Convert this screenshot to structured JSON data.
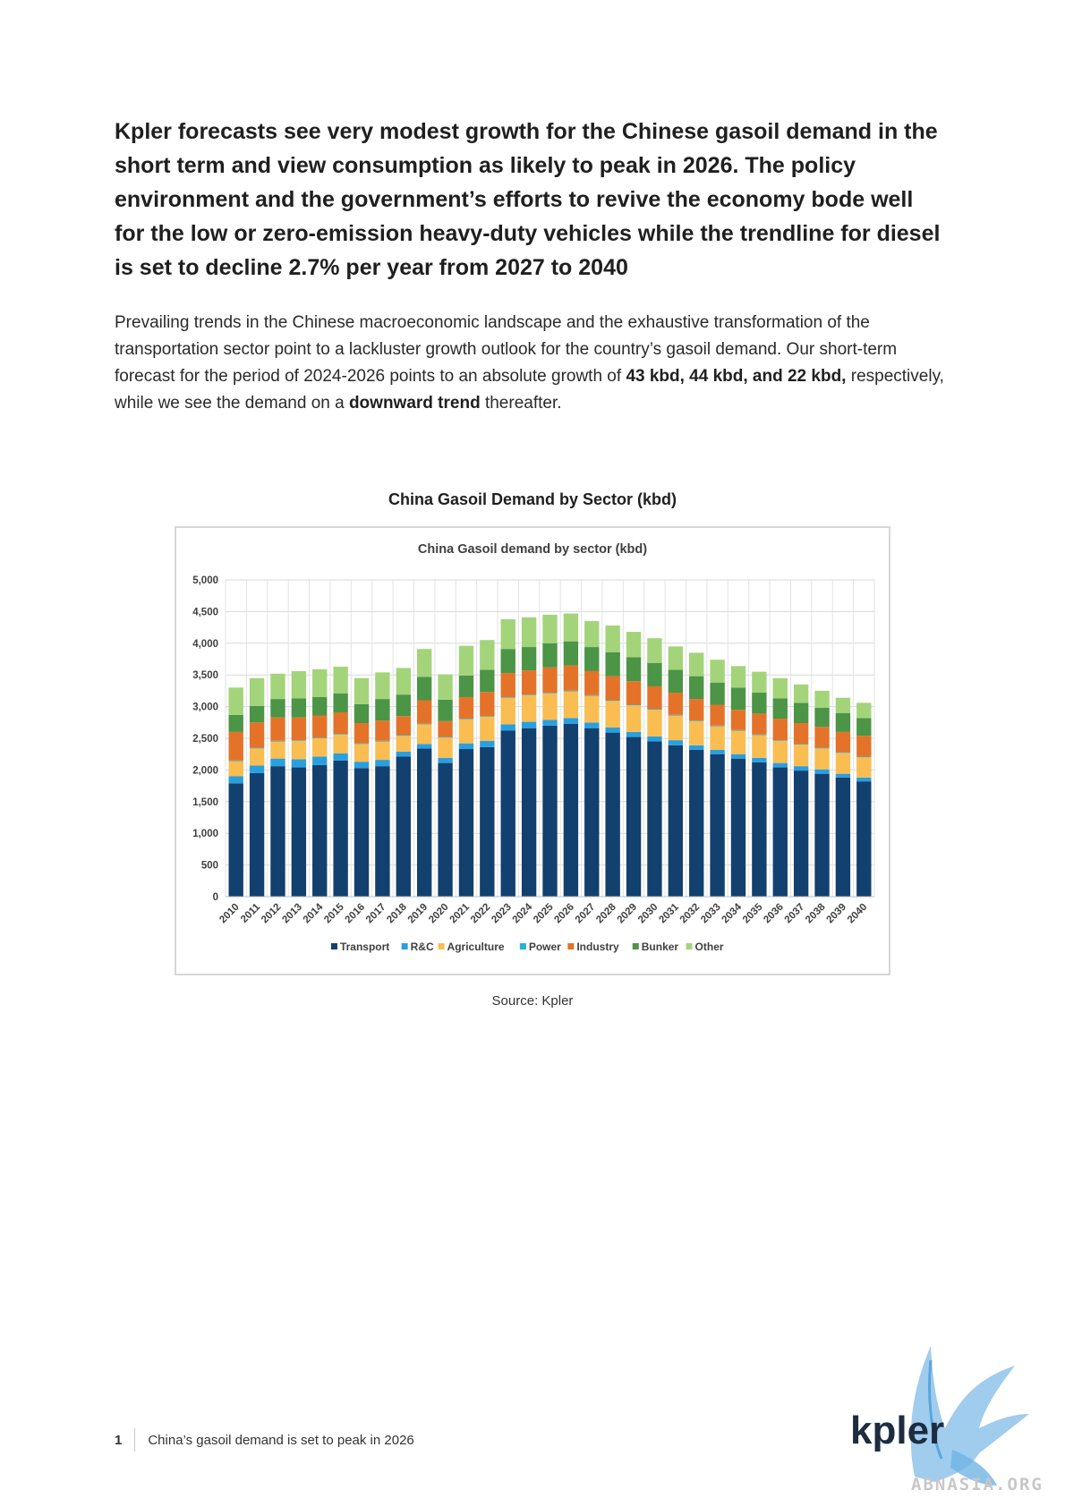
{
  "heading": "Kpler forecasts see very modest growth for the Chinese gasoil demand in the short term and view consumption as likely to peak in 2026. The policy environment and the government’s efforts to revive the economy bode well for the low or zero-emission heavy-duty vehicles while the trendline for diesel is set to decline 2.7% per year from 2027 to 2040",
  "paragraph": {
    "p1": "Prevailing trends in the Chinese macroeconomic landscape and the exhaustive transformation of the transportation sector point to a lackluster growth outlook for the country’s gasoil demand. Our short-term forecast for the period of 2024-2026 points to an absolute growth of ",
    "b1": "43 kbd, 44 kbd, and 22 kbd,",
    "p2": " respectively, while we see the demand on a ",
    "b2": "downward trend",
    "p3": " thereafter."
  },
  "figure_title": "China Gasoil Demand by Sector (kbd)",
  "source": "Source: Kpler",
  "footer": {
    "page_number": "1",
    "doc_title": "China’s gasoil demand is set to peak in 2026"
  },
  "logo": {
    "text": "kpler",
    "watermark": "ABNASIA.ORG"
  },
  "chart_data": {
    "type": "bar",
    "stacked": true,
    "title": "China Gasoil demand by sector (kbd)",
    "ylim": [
      0,
      5000
    ],
    "yticks": [
      "0",
      "500",
      "1,000",
      "1,500",
      "2,000",
      "2,500",
      "3,000",
      "3,500",
      "4,000",
      "4,500",
      "5,000"
    ],
    "grid": true,
    "legend": "bottom",
    "categories": [
      "2010",
      "2011",
      "2012",
      "2013",
      "2014",
      "2015",
      "2016",
      "2017",
      "2018",
      "2019",
      "2020",
      "2021",
      "2022",
      "2023",
      "2024",
      "2025",
      "2026",
      "2027",
      "2028",
      "2029",
      "2030",
      "2031",
      "2032",
      "2033",
      "2034",
      "2035",
      "2036",
      "2037",
      "2038",
      "2039",
      "2040"
    ],
    "series": [
      {
        "name": "Transport",
        "color": "#12406f",
        "values": [
          1790,
          1950,
          2060,
          2040,
          2080,
          2150,
          2030,
          2060,
          2210,
          2340,
          2110,
          2330,
          2360,
          2620,
          2660,
          2700,
          2730,
          2660,
          2590,
          2520,
          2450,
          2390,
          2320,
          2250,
          2180,
          2120,
          2040,
          1990,
          1940,
          1880,
          1820
        ]
      },
      {
        "name": "R&C",
        "color": "#2a9fe0",
        "values": [
          110,
          120,
          120,
          130,
          130,
          110,
          100,
          100,
          80,
          70,
          80,
          90,
          100,
          100,
          100,
          90,
          90,
          90,
          80,
          80,
          80,
          80,
          70,
          70,
          70,
          70,
          70,
          70,
          70,
          60,
          60
        ]
      },
      {
        "name": "Agriculture",
        "color": "#f9bd51",
        "values": [
          240,
          270,
          270,
          290,
          290,
          300,
          280,
          290,
          250,
          310,
          320,
          380,
          380,
          420,
          420,
          420,
          420,
          420,
          420,
          420,
          420,
          390,
          380,
          370,
          370,
          360,
          350,
          340,
          330,
          330,
          320
        ]
      },
      {
        "name": "Power",
        "color": "#22b2d8",
        "values": [
          10,
          10,
          10,
          10,
          10,
          10,
          10,
          10,
          10,
          10,
          10,
          10,
          10,
          10,
          10,
          10,
          10,
          10,
          10,
          10,
          10,
          10,
          10,
          10,
          10,
          10,
          10,
          10,
          10,
          10,
          10
        ]
      },
      {
        "name": "Industry",
        "color": "#e47329",
        "values": [
          450,
          400,
          370,
          360,
          350,
          340,
          320,
          320,
          300,
          370,
          250,
          340,
          380,
          380,
          380,
          400,
          400,
          380,
          380,
          370,
          360,
          350,
          340,
          330,
          320,
          330,
          340,
          330,
          330,
          320,
          330
        ]
      },
      {
        "name": "Bunker",
        "color": "#4c9446",
        "values": [
          270,
          260,
          290,
          300,
          290,
          300,
          300,
          340,
          340,
          370,
          340,
          340,
          350,
          380,
          370,
          380,
          380,
          380,
          380,
          380,
          370,
          360,
          360,
          350,
          350,
          330,
          320,
          320,
          300,
          300,
          280
        ]
      },
      {
        "name": "Other",
        "color": "#a3d47a",
        "values": [
          430,
          440,
          400,
          430,
          440,
          420,
          410,
          420,
          420,
          440,
          400,
          470,
          470,
          470,
          470,
          450,
          440,
          410,
          420,
          400,
          390,
          370,
          370,
          360,
          340,
          330,
          320,
          290,
          270,
          240,
          240
        ]
      }
    ]
  }
}
